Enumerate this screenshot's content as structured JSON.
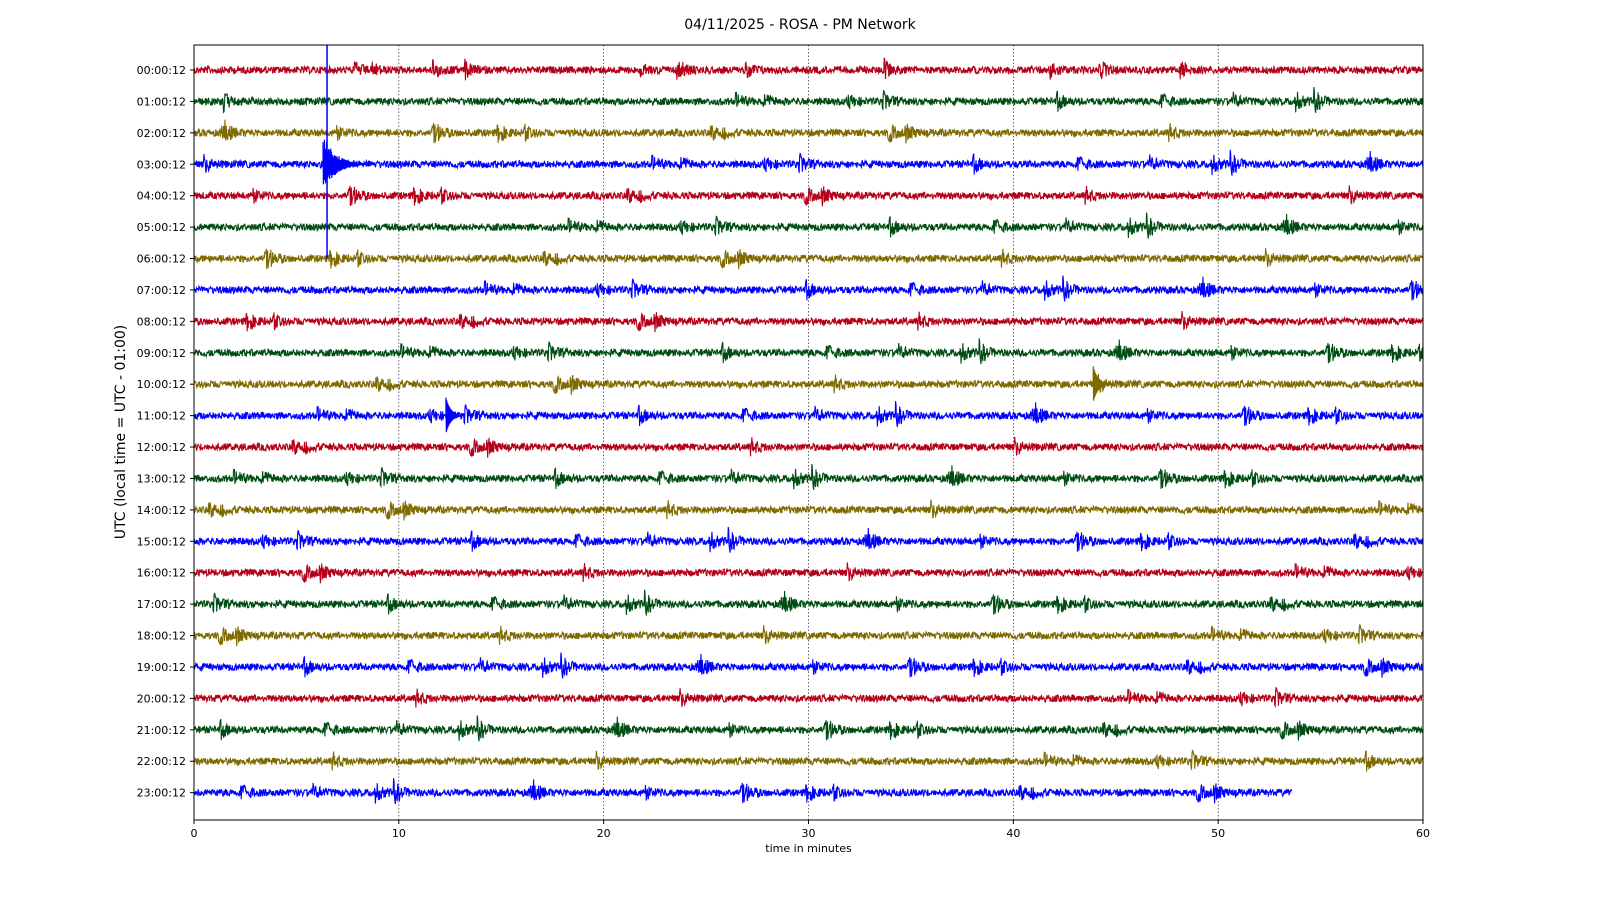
{
  "chart_data": {
    "type": "line",
    "title": "04/11/2025 - ROSA - PM Network",
    "xlabel": "time in minutes",
    "ylabel": "UTC (local time = UTC - 01:00)",
    "xlim": [
      0,
      60
    ],
    "xticks": [
      0,
      10,
      20,
      30,
      40,
      50,
      60
    ],
    "grid": "vertical dotted at x ticks",
    "rows": [
      {
        "label": "00:00:12",
        "color": "#b40018",
        "end_minute": 60
      },
      {
        "label": "01:00:12",
        "color": "#004d14",
        "end_minute": 60
      },
      {
        "label": "02:00:12",
        "color": "#7f6a00",
        "end_minute": 60
      },
      {
        "label": "03:00:12",
        "color": "#0000ff",
        "end_minute": 60
      },
      {
        "label": "04:00:12",
        "color": "#b40018",
        "end_minute": 60
      },
      {
        "label": "05:00:12",
        "color": "#004d14",
        "end_minute": 60
      },
      {
        "label": "06:00:12",
        "color": "#7f6a00",
        "end_minute": 60
      },
      {
        "label": "07:00:12",
        "color": "#0000ff",
        "end_minute": 60
      },
      {
        "label": "08:00:12",
        "color": "#b40018",
        "end_minute": 60
      },
      {
        "label": "09:00:12",
        "color": "#004d14",
        "end_minute": 60
      },
      {
        "label": "10:00:12",
        "color": "#7f6a00",
        "end_minute": 60
      },
      {
        "label": "11:00:12",
        "color": "#0000ff",
        "end_minute": 60
      },
      {
        "label": "12:00:12",
        "color": "#b40018",
        "end_minute": 60
      },
      {
        "label": "13:00:12",
        "color": "#004d14",
        "end_minute": 60
      },
      {
        "label": "14:00:12",
        "color": "#7f6a00",
        "end_minute": 60
      },
      {
        "label": "15:00:12",
        "color": "#0000ff",
        "end_minute": 60
      },
      {
        "label": "16:00:12",
        "color": "#b40018",
        "end_minute": 60
      },
      {
        "label": "17:00:12",
        "color": "#004d14",
        "end_minute": 60
      },
      {
        "label": "18:00:12",
        "color": "#7f6a00",
        "end_minute": 60
      },
      {
        "label": "19:00:12",
        "color": "#0000ff",
        "end_minute": 60
      },
      {
        "label": "20:00:12",
        "color": "#b40018",
        "end_minute": 60
      },
      {
        "label": "21:00:12",
        "color": "#004d14",
        "end_minute": 60
      },
      {
        "label": "22:00:12",
        "color": "#7f6a00",
        "end_minute": 60
      },
      {
        "label": "23:00:12",
        "color": "#0000ff",
        "end_minute": 53.6
      }
    ],
    "events": [
      {
        "row": 3,
        "minute": 6.3,
        "type": "large-earthquake"
      },
      {
        "row": 10,
        "minute": 43.9,
        "type": "local-event"
      },
      {
        "row": 11,
        "minute": 12.3,
        "type": "local-event"
      }
    ]
  }
}
